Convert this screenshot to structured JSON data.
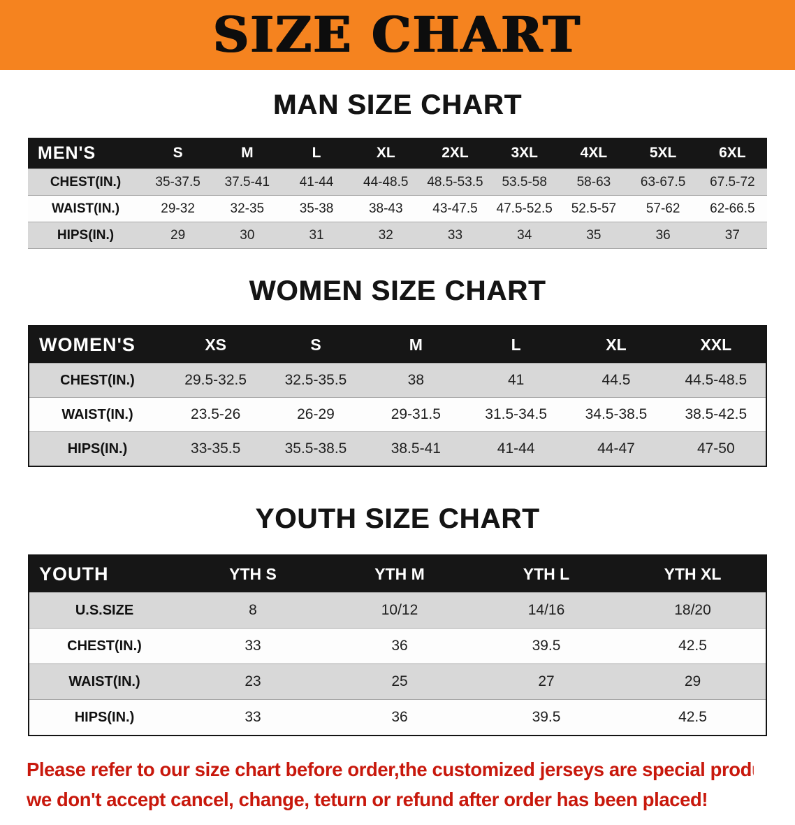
{
  "banner": {
    "title": "SIZE CHART"
  },
  "colors": {
    "banner_bg": "#f5831f",
    "header_bg": "#161616",
    "row_gray": "#d8d8d8",
    "footer_text": "#c8180c"
  },
  "sections": [
    {
      "id": "men",
      "heading": "MAN SIZE CHART",
      "table": {
        "header_label": "MEN'S",
        "columns": [
          "S",
          "M",
          "L",
          "XL",
          "2XL",
          "3XL",
          "4XL",
          "5XL",
          "6XL"
        ],
        "rows": [
          {
            "label": "CHEST(IN.)",
            "values": [
              "35-37.5",
              "37.5-41",
              "41-44",
              "44-48.5",
              "48.5-53.5",
              "53.5-58",
              "58-63",
              "63-67.5",
              "67.5-72"
            ]
          },
          {
            "label": "WAIST(IN.)",
            "values": [
              "29-32",
              "32-35",
              "35-38",
              "38-43",
              "43-47.5",
              "47.5-52.5",
              "52.5-57",
              "57-62",
              "62-66.5"
            ]
          },
          {
            "label": "HIPS(IN.)",
            "values": [
              "29",
              "30",
              "31",
              "32",
              "33",
              "34",
              "35",
              "36",
              "37"
            ]
          }
        ]
      }
    },
    {
      "id": "women",
      "heading": "WOMEN SIZE CHART",
      "table": {
        "header_label": "WOMEN'S",
        "columns": [
          "XS",
          "S",
          "M",
          "L",
          "XL",
          "XXL"
        ],
        "rows": [
          {
            "label": "CHEST(IN.)",
            "values": [
              "29.5-32.5",
              "32.5-35.5",
              "38",
              "41",
              "44.5",
              "44.5-48.5"
            ]
          },
          {
            "label": "WAIST(IN.)",
            "values": [
              "23.5-26",
              "26-29",
              "29-31.5",
              "31.5-34.5",
              "34.5-38.5",
              "38.5-42.5"
            ]
          },
          {
            "label": "HIPS(IN.)",
            "values": [
              "33-35.5",
              "35.5-38.5",
              "38.5-41",
              "41-44",
              "44-47",
              "47-50"
            ]
          }
        ]
      }
    },
    {
      "id": "youth",
      "heading": "YOUTH SIZE CHART",
      "table": {
        "header_label": "YOUTH",
        "columns": [
          "YTH S",
          "YTH M",
          "YTH L",
          "YTH XL"
        ],
        "rows": [
          {
            "label": "U.S.SIZE",
            "values": [
              "8",
              "10/12",
              "14/16",
              "18/20"
            ]
          },
          {
            "label": "CHEST(IN.)",
            "values": [
              "33",
              "36",
              "39.5",
              "42.5"
            ]
          },
          {
            "label": "WAIST(IN.)",
            "values": [
              "23",
              "25",
              "27",
              "29"
            ]
          },
          {
            "label": "HIPS(IN.)",
            "values": [
              "33",
              "36",
              "39.5",
              "42.5"
            ]
          }
        ]
      }
    }
  ],
  "footer": {
    "line1": "Please refer to our size chart before order,the customized jerseys are special products,",
    "line2": "we don't accept cancel, change, teturn or refund after order has been placed!"
  }
}
